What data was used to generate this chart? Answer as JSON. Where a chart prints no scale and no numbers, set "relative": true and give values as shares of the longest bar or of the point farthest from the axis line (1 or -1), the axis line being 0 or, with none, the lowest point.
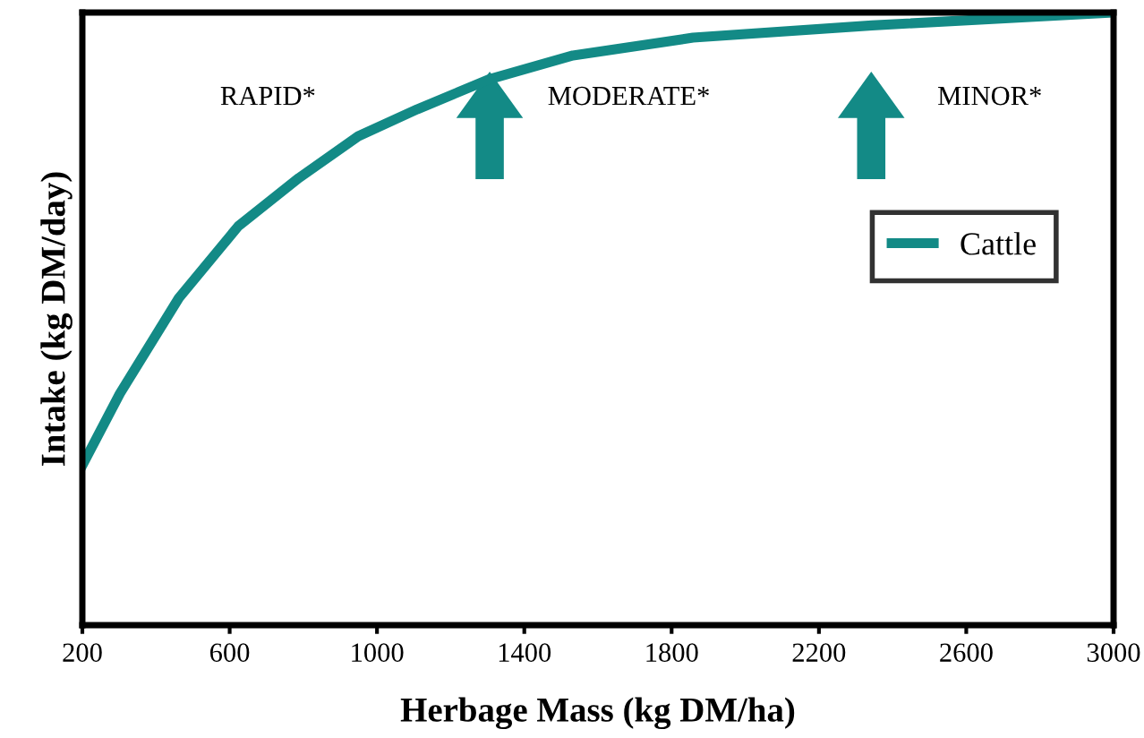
{
  "chart_data": {
    "type": "line",
    "xlabel": "Herbage Mass (kg DM/ha)",
    "ylabel": "Intake (kg DM/day)",
    "relative": true,
    "x": [
      200,
      302,
      462,
      623,
      788,
      949,
      1109,
      1304,
      1532,
      1858,
      2344,
      3000
    ],
    "series": [
      {
        "name": "Cattle",
        "color": "#138a86",
        "values": [
          0.261,
          0.378,
          0.534,
          0.651,
          0.73,
          0.798,
          0.842,
          0.891,
          0.93,
          0.959,
          0.979,
          1
        ]
      }
    ],
    "xlim": [
      200,
      3000
    ],
    "xticks": [
      200,
      600,
      1000,
      1400,
      1800,
      2200,
      2600,
      3000
    ],
    "annotations": [
      "RAPID*",
      "MODERATE*",
      "MINOR*"
    ],
    "legend": "right",
    "grid": false,
    "marker": "none",
    "line_style": "solid"
  }
}
